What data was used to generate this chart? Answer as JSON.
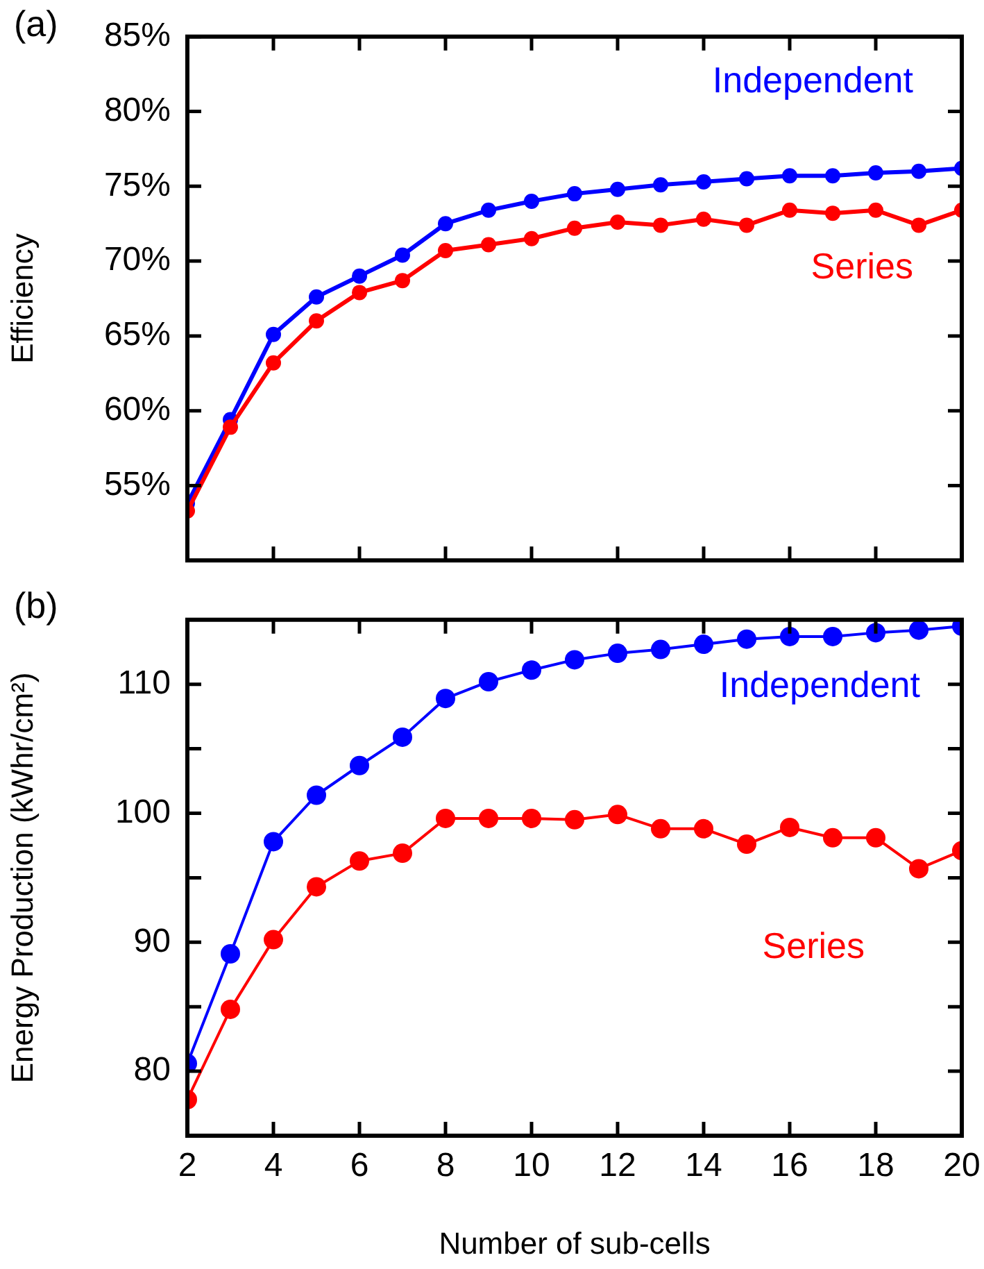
{
  "chart_data": [
    {
      "type": "line",
      "ylabel": "Efficiency",
      "annotations": [
        "(a)"
      ],
      "marker": "circle",
      "tick_labels": "y",
      "x": [
        2,
        3,
        4,
        5,
        6,
        7,
        8,
        9,
        10,
        11,
        12,
        13,
        14,
        15,
        16,
        17,
        18,
        19,
        20
      ],
      "xlim": [
        2,
        20
      ],
      "xticks": [
        2,
        4,
        6,
        8,
        10,
        12,
        14,
        16,
        18,
        20
      ],
      "ylim": [
        50,
        85
      ],
      "yticks": [
        {
          "value": 55,
          "label": "55%"
        },
        {
          "value": 60,
          "label": "60%"
        },
        {
          "value": 65,
          "label": "65%"
        },
        {
          "value": 70,
          "label": "70%"
        },
        {
          "value": 75,
          "label": "75%"
        },
        {
          "value": 80,
          "label": "80%"
        },
        {
          "value": 85,
          "label": "85%"
        }
      ],
      "series": [
        {
          "name": "Independent",
          "color": "#0000ff",
          "values": [
            53.8,
            59.4,
            65.1,
            67.6,
            69.0,
            70.4,
            72.5,
            73.4,
            74.0,
            74.5,
            74.8,
            75.1,
            75.3,
            75.5,
            75.7,
            75.7,
            75.9,
            76.0,
            76.2
          ]
        },
        {
          "name": "Series",
          "color": "#ff0000",
          "values": [
            53.3,
            58.9,
            63.2,
            66.0,
            67.9,
            68.7,
            70.7,
            71.1,
            71.5,
            72.2,
            72.6,
            72.4,
            72.8,
            72.4,
            73.4,
            73.2,
            73.4,
            72.4,
            73.4
          ]
        }
      ]
    },
    {
      "type": "line",
      "ylabel": "Energy Production (kWhr/cm²)",
      "xlabel": "Number of sub-cells",
      "annotations": [
        "(b)"
      ],
      "marker": "circle",
      "x": [
        2,
        3,
        4,
        5,
        6,
        7,
        8,
        9,
        10,
        11,
        12,
        13,
        14,
        15,
        16,
        17,
        18,
        19,
        20
      ],
      "xlim": [
        2,
        20
      ],
      "xticks": [
        2,
        4,
        6,
        8,
        10,
        12,
        14,
        16,
        18,
        20
      ],
      "ylim": [
        75,
        115
      ],
      "yticks": [
        80,
        {
          "value": 85,
          "label": null
        },
        90,
        {
          "value": 95,
          "label": null
        },
        100,
        {
          "value": 105,
          "label": null
        },
        110
      ],
      "series": [
        {
          "name": "Independent",
          "color": "#0000ff",
          "values": [
            80.6,
            89.1,
            97.8,
            101.4,
            103.7,
            105.9,
            108.9,
            110.2,
            111.1,
            111.9,
            112.4,
            112.7,
            113.1,
            113.5,
            113.7,
            113.7,
            114.0,
            114.2,
            114.5
          ]
        },
        {
          "name": "Series",
          "color": "#ff0000",
          "values": [
            77.8,
            84.8,
            90.2,
            94.3,
            96.3,
            96.9,
            99.6,
            99.6,
            99.6,
            99.5,
            99.9,
            98.8,
            98.8,
            97.6,
            98.9,
            98.1,
            98.1,
            95.7,
            97.1
          ]
        }
      ]
    }
  ]
}
